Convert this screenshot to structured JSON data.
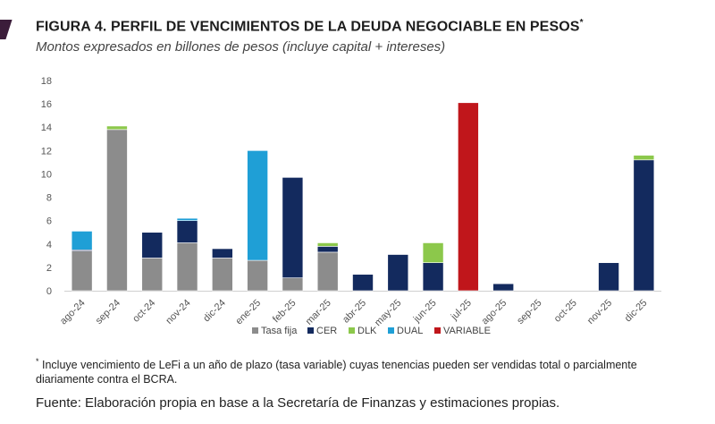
{
  "figure": {
    "title": "FIGURA 4. PERFIL DE VENCIMIENTOS DE LA DEUDA NEGOCIABLE EN PESOS",
    "title_marker": "*",
    "subtitle": "Montos expresados en billones de pesos (incluye capital + intereses)"
  },
  "footnote": {
    "marker": "*",
    "text": "Incluye vencimiento de LeFi a un año de plazo (tasa variable) cuyas tenencias pueden ser vendidas total o parcialmente diariamente contra el BCRA."
  },
  "source": "Fuente: Elaboración propia en base a la Secretaría de Finanzas y estimaciones propias.",
  "colors": {
    "accent": "#3b1d3a",
    "Tasa fija": "#8c8c8c",
    "CER": "#132a5e",
    "DLK": "#8cc84b",
    "DUAL": "#1f9fd6",
    "VARIABLE": "#c0161b"
  },
  "chart_data": {
    "type": "bar",
    "stacked": true,
    "categories": [
      "ago-24",
      "sep-24",
      "oct-24",
      "nov-24",
      "dic-24",
      "ene-25",
      "feb-25",
      "mar-25",
      "abr-25",
      "may-25",
      "jun-25",
      "jul-25",
      "ago-25",
      "sep-25",
      "oct-25",
      "nov-25",
      "dic-25"
    ],
    "series": [
      {
        "name": "Tasa fija",
        "values": [
          3.4,
          13.8,
          2.8,
          4.1,
          2.8,
          2.6,
          1.1,
          3.3,
          0,
          0,
          0,
          0,
          0,
          0,
          0,
          0,
          0
        ]
      },
      {
        "name": "CER",
        "values": [
          0.1,
          0,
          2.2,
          1.9,
          0.8,
          0,
          8.6,
          0.5,
          1.4,
          3.1,
          2.4,
          0,
          0.6,
          0,
          0,
          2.4,
          11.2
        ]
      },
      {
        "name": "DLK",
        "values": [
          0,
          0.3,
          0,
          0,
          0,
          0,
          0,
          0.3,
          0,
          0,
          1.7,
          0,
          0,
          0,
          0,
          0,
          0.4
        ]
      },
      {
        "name": "DUAL",
        "values": [
          1.6,
          0,
          0,
          0.2,
          0,
          9.4,
          0,
          0,
          0,
          0,
          0,
          0,
          0,
          0,
          0,
          0,
          0
        ]
      },
      {
        "name": "VARIABLE",
        "values": [
          0,
          0,
          0,
          0,
          0,
          0,
          0,
          0,
          0,
          0,
          0,
          16.1,
          0,
          0,
          0,
          0,
          0
        ]
      }
    ],
    "ylim": [
      0,
      18
    ],
    "yticks": [
      0,
      2,
      4,
      6,
      8,
      10,
      12,
      14,
      16,
      18
    ],
    "grid": false,
    "legend_position": "bottom"
  }
}
